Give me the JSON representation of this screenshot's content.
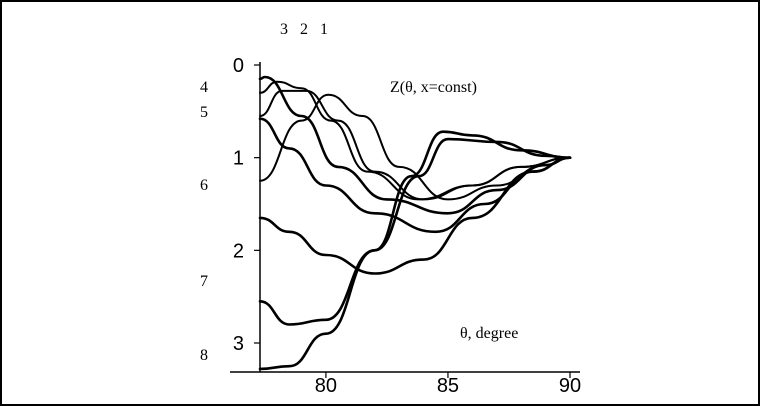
{
  "chart_data": {
    "type": "line",
    "annotation": "Z(θ, x=const)",
    "xlabel": "θ, degree",
    "ylabel": "",
    "xlim": [
      77.3,
      90
    ],
    "ylim": [
      0,
      3.4
    ],
    "y_inverted": true,
    "grid": false,
    "x_ticks": [
      "80",
      "85",
      "90"
    ],
    "y_ticks": [
      "0",
      "1",
      "2",
      "3"
    ],
    "top_curve_labels": [
      "3",
      "2",
      "1"
    ],
    "left_curve_labels": [
      "4",
      "5",
      "6",
      "7",
      "8"
    ],
    "series": [
      {
        "label": "1",
        "x": [
          77.3,
          79,
          80.1,
          81.5,
          83,
          85,
          87,
          89,
          90
        ],
        "y": [
          1.25,
          0.6,
          0.32,
          0.55,
          1.1,
          1.45,
          1.3,
          1.08,
          1.0
        ]
      },
      {
        "label": "2",
        "x": [
          77.3,
          78.2,
          79.2,
          80.5,
          82,
          84,
          86,
          88,
          90
        ],
        "y": [
          0.55,
          0.28,
          0.28,
          0.6,
          1.15,
          1.45,
          1.3,
          1.1,
          1.0
        ]
      },
      {
        "label": "3",
        "x": [
          77.3,
          78,
          79,
          80.2,
          81.7,
          83.8,
          86,
          88,
          90
        ],
        "y": [
          0.3,
          0.18,
          0.25,
          0.6,
          1.15,
          1.45,
          1.3,
          1.1,
          1.0
        ]
      },
      {
        "label": "4",
        "x": [
          77.3,
          77.5,
          79,
          80.5,
          82.5,
          85,
          87,
          89,
          90
        ],
        "y": [
          0.15,
          0.13,
          0.55,
          1.1,
          1.45,
          1.6,
          1.35,
          1.08,
          1.0
        ]
      },
      {
        "label": "5",
        "x": [
          77.3,
          78.5,
          80,
          82,
          84.5,
          86.5,
          88.5,
          90
        ],
        "y": [
          0.58,
          0.9,
          1.3,
          1.6,
          1.8,
          1.5,
          1.15,
          1.0
        ]
      },
      {
        "label": "6",
        "x": [
          77.3,
          78.5,
          80,
          82,
          84,
          86,
          88.5,
          90
        ],
        "y": [
          1.65,
          1.8,
          2.05,
          2.25,
          2.1,
          1.65,
          1.15,
          1.0
        ]
      },
      {
        "label": "7",
        "x": [
          77.3,
          78.5,
          80,
          82,
          83.8,
          85,
          87,
          89,
          90
        ],
        "y": [
          2.55,
          2.8,
          2.75,
          2.0,
          1.2,
          0.8,
          0.83,
          0.98,
          1.0
        ]
      },
      {
        "label": "8",
        "x": [
          77.3,
          78.5,
          80,
          82,
          83.5,
          84.8,
          86,
          88,
          90
        ],
        "y": [
          3.28,
          3.25,
          2.9,
          2.0,
          1.2,
          0.72,
          0.76,
          0.92,
          1.0
        ]
      }
    ]
  }
}
